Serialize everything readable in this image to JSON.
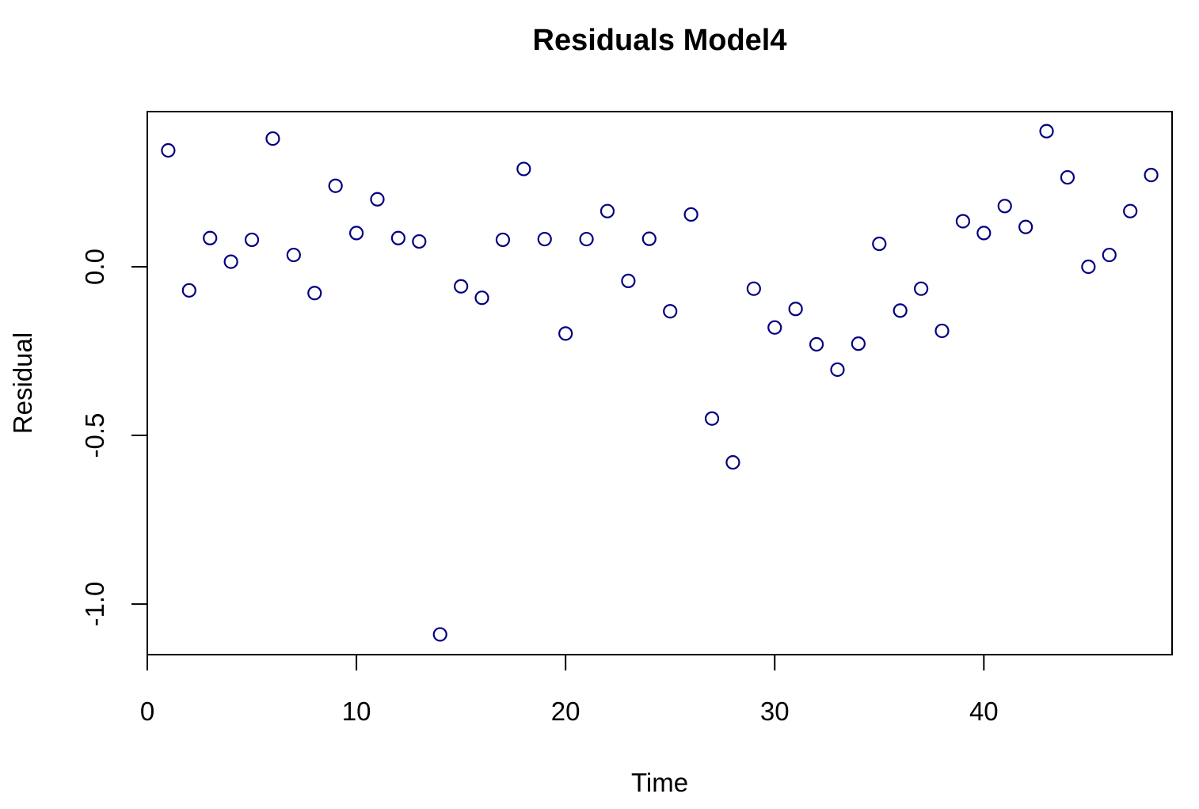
{
  "chart_data": {
    "type": "scatter",
    "title": "Residuals Model4",
    "xlabel": "Time",
    "ylabel": "Residual",
    "xlim": [
      0,
      49
    ],
    "ylim": [
      -1.15,
      0.46
    ],
    "x_ticks": [
      0,
      10,
      20,
      30,
      40
    ],
    "x_tick_labels": [
      "0",
      "10",
      "20",
      "30",
      "40"
    ],
    "y_ticks": [
      0.0,
      -0.5,
      -1.0
    ],
    "y_tick_labels": [
      "0.0",
      "-0.5",
      "-1.0"
    ],
    "grid": false,
    "legend": "none",
    "marker": "open-circle",
    "point_color": "#000080",
    "series": [
      {
        "x": [
          1,
          2,
          3,
          4,
          5,
          6,
          7,
          8,
          9,
          10,
          11,
          12,
          13,
          14,
          15,
          16,
          17,
          18,
          19,
          20,
          21,
          22,
          23,
          24,
          25,
          26,
          27,
          28,
          29,
          30,
          31,
          32,
          33,
          34,
          35,
          36,
          37,
          38,
          39,
          40,
          41,
          42,
          43,
          44,
          45,
          46,
          47,
          48
        ],
        "y": [
          0.345,
          -0.07,
          0.085,
          0.015,
          0.08,
          0.38,
          0.035,
          -0.078,
          0.24,
          0.1,
          0.2,
          0.085,
          0.075,
          -1.09,
          -0.058,
          -0.092,
          0.08,
          0.29,
          0.082,
          -0.198,
          0.082,
          0.165,
          -0.042,
          0.083,
          -0.132,
          0.155,
          -0.45,
          -0.58,
          -0.065,
          -0.18,
          -0.125,
          -0.23,
          -0.305,
          -0.228,
          0.068,
          -0.13,
          -0.065,
          -0.19,
          0.135,
          0.1,
          0.18,
          0.118,
          0.402,
          0.265,
          0.0,
          0.035,
          0.165,
          0.272
        ]
      }
    ]
  }
}
